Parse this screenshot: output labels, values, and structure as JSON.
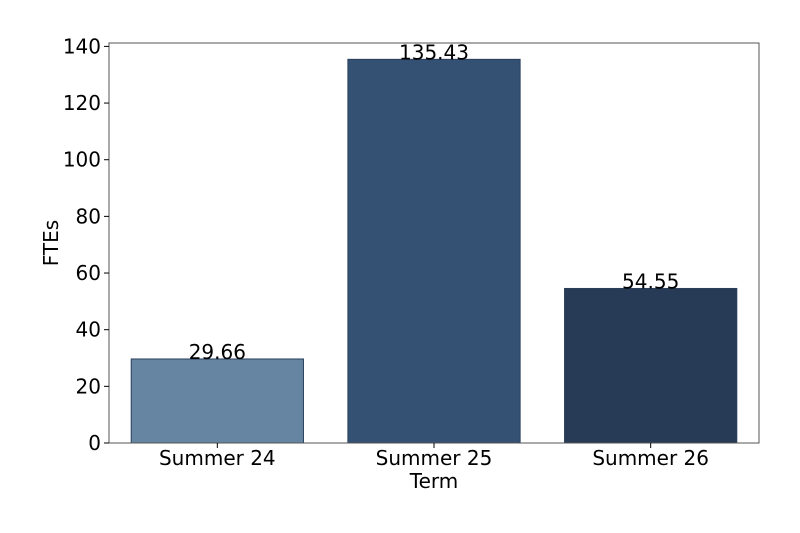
{
  "chart_data": {
    "type": "bar",
    "categories": [
      "Summer 24",
      "Summer 25",
      "Summer 26"
    ],
    "values": [
      29.66,
      135.43,
      54.55
    ],
    "data_labels": [
      "29.66",
      "135.43",
      "54.55"
    ],
    "xlabel": "Term",
    "ylabel": "FTEs",
    "ylim": [
      0,
      141.2
    ],
    "yticks": [
      0,
      20,
      40,
      60,
      80,
      100,
      120,
      140
    ],
    "grid": false,
    "bar_colors": [
      "#6685a3",
      "#345073",
      "#283b56"
    ],
    "bar_edge_color": "#2a3f5c",
    "frame_color": "#555555"
  }
}
